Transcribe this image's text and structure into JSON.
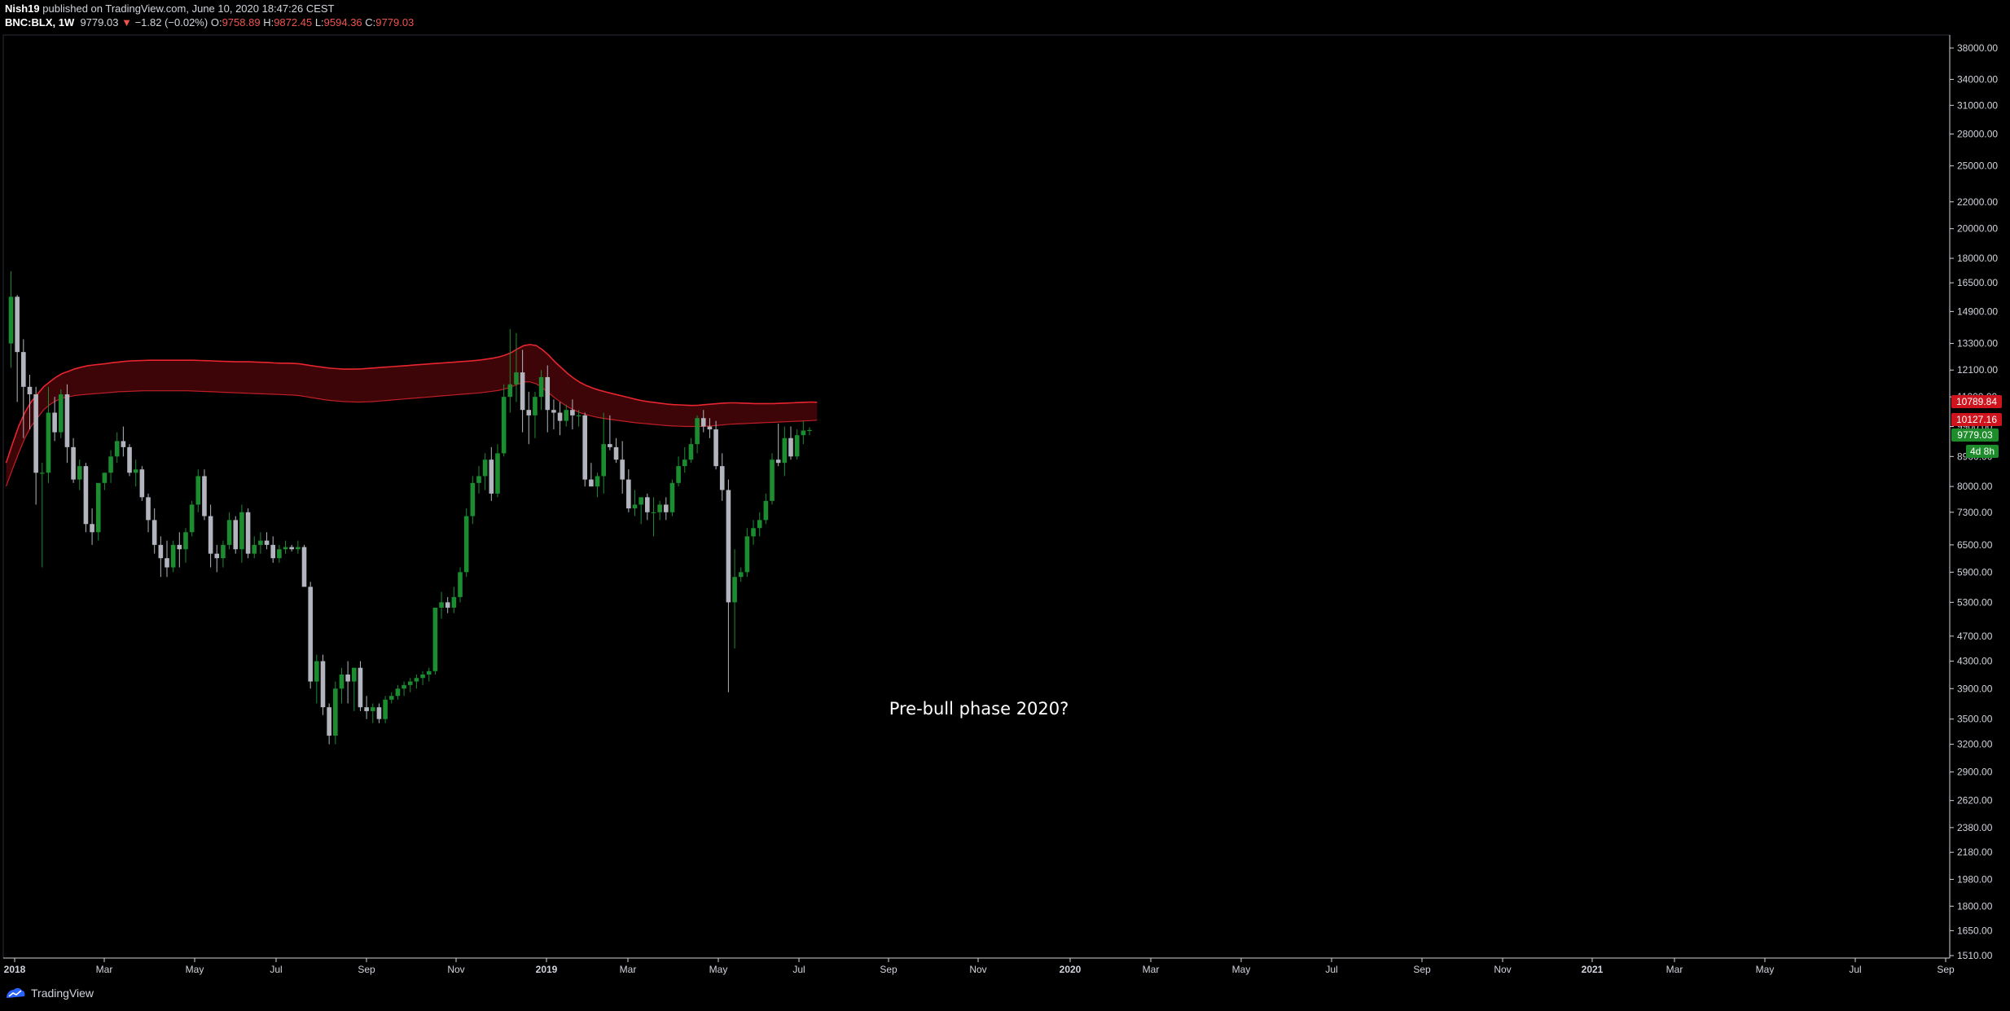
{
  "header": {
    "publisher": "Nish19",
    "published_text": "published on TradingView.com, June 10, 2020 18:47:26 CEST",
    "symbol": "BNC:BLX, 1W",
    "last": "9779.03",
    "change": "−1.82 (−0.02%)",
    "o_label": "O:",
    "o_value": "9758.89",
    "h_label": "H:",
    "h_value": "9872.45",
    "l_label": "L:",
    "l_value": "9594.36",
    "c_label": "C:",
    "c_value": "9779.03"
  },
  "footer": {
    "brand": "TradingView"
  },
  "annotation": "Pre-bull phase 2020?",
  "price_tags": {
    "band_upper": "10789.84",
    "band_lower": "10127.16",
    "last_price": "9779.03",
    "countdown": "4d 8h"
  },
  "colors": {
    "background": "#000000",
    "bull": "#1b8c30",
    "bear": "#b2b5be",
    "band_line": "#e8252f",
    "band_fill": "#3d0508",
    "tag_red": "#d0141e",
    "tag_green": "#1e8c2b"
  },
  "chart_data": {
    "type": "candlestick",
    "scale": "log",
    "timeframe": "1W",
    "y_ticks": [
      "38000.00",
      "34000.00",
      "31000.00",
      "28000.00",
      "25000.00",
      "22000.00",
      "20000.00",
      "18000.00",
      "16500.00",
      "14900.00",
      "13300.00",
      "12100.00",
      "11000.00",
      "9900.00",
      "8900.00",
      "8000.00",
      "7300.00",
      "6500.00",
      "5900.00",
      "5300.00",
      "4700.00",
      "4300.00",
      "3900.00",
      "3500.00",
      "3200.00",
      "2900.00",
      "2620.00",
      "2380.00",
      "2180.00",
      "1980.00",
      "1800.00",
      "1650.00",
      "1510.00"
    ],
    "x_ticks": [
      "2018",
      "Mar",
      "May",
      "Jul",
      "Sep",
      "Nov",
      "2019",
      "Mar",
      "May",
      "Jul",
      "Sep",
      "Nov",
      "2020",
      "Mar",
      "May",
      "Jul",
      "Sep",
      "Nov",
      "2021",
      "Mar",
      "May",
      "Jul",
      "Sep"
    ],
    "candles": [
      {
        "o": 13300,
        "h": 17200,
        "l": 12200,
        "c": 15700
      },
      {
        "o": 15700,
        "h": 15800,
        "l": 10800,
        "c": 12900
      },
      {
        "o": 12900,
        "h": 13500,
        "l": 9500,
        "c": 11400
      },
      {
        "o": 11400,
        "h": 11900,
        "l": 9800,
        "c": 11100
      },
      {
        "o": 11100,
        "h": 11400,
        "l": 7500,
        "c": 8400
      },
      {
        "o": 8400,
        "h": 8700,
        "l": 6000,
        "c": 8400
      },
      {
        "o": 8400,
        "h": 11400,
        "l": 8100,
        "c": 10400
      },
      {
        "o": 10400,
        "h": 11000,
        "l": 9400,
        "c": 9700
      },
      {
        "o": 9700,
        "h": 11300,
        "l": 9500,
        "c": 11100
      },
      {
        "o": 11100,
        "h": 11500,
        "l": 8700,
        "c": 9200
      },
      {
        "o": 9200,
        "h": 9500,
        "l": 8100,
        "c": 8200
      },
      {
        "o": 8200,
        "h": 8800,
        "l": 7900,
        "c": 8600
      },
      {
        "o": 8600,
        "h": 8700,
        "l": 6800,
        "c": 7000
      },
      {
        "o": 7000,
        "h": 7400,
        "l": 6500,
        "c": 6800
      },
      {
        "o": 6800,
        "h": 8100,
        "l": 6600,
        "c": 8100
      },
      {
        "o": 8100,
        "h": 8400,
        "l": 7900,
        "c": 8400
      },
      {
        "o": 8400,
        "h": 9100,
        "l": 8100,
        "c": 8900
      },
      {
        "o": 8900,
        "h": 9700,
        "l": 8700,
        "c": 9400
      },
      {
        "o": 9400,
        "h": 9900,
        "l": 8900,
        "c": 9200
      },
      {
        "o": 9200,
        "h": 9300,
        "l": 8300,
        "c": 8400
      },
      {
        "o": 8400,
        "h": 8800,
        "l": 8000,
        "c": 8500
      },
      {
        "o": 8500,
        "h": 8600,
        "l": 7600,
        "c": 7700
      },
      {
        "o": 7700,
        "h": 7800,
        "l": 6800,
        "c": 7100
      },
      {
        "o": 7100,
        "h": 7400,
        "l": 6300,
        "c": 6500
      },
      {
        "o": 6500,
        "h": 6700,
        "l": 5800,
        "c": 6200
      },
      {
        "o": 6200,
        "h": 6600,
        "l": 5800,
        "c": 6000
      },
      {
        "o": 6000,
        "h": 6600,
        "l": 5900,
        "c": 6500
      },
      {
        "o": 6500,
        "h": 6800,
        "l": 6000,
        "c": 6400
      },
      {
        "o": 6400,
        "h": 6900,
        "l": 6100,
        "c": 6800
      },
      {
        "o": 6800,
        "h": 7600,
        "l": 6700,
        "c": 7500
      },
      {
        "o": 7500,
        "h": 8500,
        "l": 7300,
        "c": 8300
      },
      {
        "o": 8300,
        "h": 8500,
        "l": 7100,
        "c": 7200
      },
      {
        "o": 7200,
        "h": 7500,
        "l": 6000,
        "c": 6300
      },
      {
        "o": 6300,
        "h": 6500,
        "l": 5900,
        "c": 6200
      },
      {
        "o": 6200,
        "h": 6600,
        "l": 6000,
        "c": 6500
      },
      {
        "o": 6500,
        "h": 7300,
        "l": 6400,
        "c": 7100
      },
      {
        "o": 7100,
        "h": 7200,
        "l": 6300,
        "c": 6400
      },
      {
        "o": 6400,
        "h": 7500,
        "l": 6100,
        "c": 7300
      },
      {
        "o": 7300,
        "h": 7400,
        "l": 6200,
        "c": 6300
      },
      {
        "o": 6300,
        "h": 6700,
        "l": 6200,
        "c": 6500
      },
      {
        "o": 6500,
        "h": 6800,
        "l": 6300,
        "c": 6600
      },
      {
        "o": 6600,
        "h": 6800,
        "l": 6400,
        "c": 6500
      },
      {
        "o": 6500,
        "h": 6700,
        "l": 6100,
        "c": 6200
      },
      {
        "o": 6200,
        "h": 6500,
        "l": 6100,
        "c": 6400
      },
      {
        "o": 6400,
        "h": 6600,
        "l": 6300,
        "c": 6450
      },
      {
        "o": 6450,
        "h": 6500,
        "l": 6350,
        "c": 6400
      },
      {
        "o": 6400,
        "h": 6600,
        "l": 6300,
        "c": 6450
      },
      {
        "o": 6450,
        "h": 6500,
        "l": 5700,
        "c": 5600
      },
      {
        "o": 5600,
        "h": 5700,
        "l": 3900,
        "c": 4000
      },
      {
        "o": 4000,
        "h": 4400,
        "l": 3700,
        "c": 4300
      },
      {
        "o": 4300,
        "h": 4400,
        "l": 3550,
        "c": 3650
      },
      {
        "o": 3650,
        "h": 3700,
        "l": 3200,
        "c": 3300
      },
      {
        "o": 3300,
        "h": 4000,
        "l": 3200,
        "c": 3900
      },
      {
        "o": 3900,
        "h": 4200,
        "l": 3700,
        "c": 4100
      },
      {
        "o": 4100,
        "h": 4300,
        "l": 3700,
        "c": 4000
      },
      {
        "o": 4000,
        "h": 4200,
        "l": 3600,
        "c": 4200
      },
      {
        "o": 4200,
        "h": 4300,
        "l": 3600,
        "c": 3650
      },
      {
        "o": 3650,
        "h": 3800,
        "l": 3500,
        "c": 3600
      },
      {
        "o": 3600,
        "h": 3700,
        "l": 3450,
        "c": 3650
      },
      {
        "o": 3650,
        "h": 3700,
        "l": 3450,
        "c": 3500
      },
      {
        "o": 3500,
        "h": 3800,
        "l": 3450,
        "c": 3750
      },
      {
        "o": 3750,
        "h": 3850,
        "l": 3700,
        "c": 3800
      },
      {
        "o": 3800,
        "h": 3950,
        "l": 3750,
        "c": 3900
      },
      {
        "o": 3900,
        "h": 4000,
        "l": 3800,
        "c": 3950
      },
      {
        "o": 3950,
        "h": 4050,
        "l": 3850,
        "c": 4000
      },
      {
        "o": 4000,
        "h": 4100,
        "l": 3900,
        "c": 4050
      },
      {
        "o": 4050,
        "h": 4150,
        "l": 3950,
        "c": 4100
      },
      {
        "o": 4100,
        "h": 4200,
        "l": 4000,
        "c": 4150
      },
      {
        "o": 4150,
        "h": 5200,
        "l": 4100,
        "c": 5200
      },
      {
        "o": 5200,
        "h": 5500,
        "l": 5000,
        "c": 5300
      },
      {
        "o": 5300,
        "h": 5400,
        "l": 5100,
        "c": 5200
      },
      {
        "o": 5200,
        "h": 5600,
        "l": 5100,
        "c": 5400
      },
      {
        "o": 5400,
        "h": 6000,
        "l": 5300,
        "c": 5900
      },
      {
        "o": 5900,
        "h": 7400,
        "l": 5800,
        "c": 7200
      },
      {
        "o": 7200,
        "h": 8300,
        "l": 7000,
        "c": 8100
      },
      {
        "o": 8100,
        "h": 8600,
        "l": 7800,
        "c": 8300
      },
      {
        "o": 8300,
        "h": 9000,
        "l": 7900,
        "c": 8800
      },
      {
        "o": 8800,
        "h": 9200,
        "l": 7600,
        "c": 7800
      },
      {
        "o": 7800,
        "h": 9300,
        "l": 7700,
        "c": 9000
      },
      {
        "o": 9000,
        "h": 11500,
        "l": 8900,
        "c": 11000
      },
      {
        "o": 11000,
        "h": 14000,
        "l": 10400,
        "c": 11500
      },
      {
        "o": 11500,
        "h": 13800,
        "l": 10800,
        "c": 12000
      },
      {
        "o": 12000,
        "h": 13000,
        "l": 9700,
        "c": 10500
      },
      {
        "o": 10500,
        "h": 11200,
        "l": 9300,
        "c": 10300
      },
      {
        "o": 10300,
        "h": 11200,
        "l": 9500,
        "c": 11000
      },
      {
        "o": 11000,
        "h": 12100,
        "l": 10500,
        "c": 11800
      },
      {
        "o": 11800,
        "h": 12300,
        "l": 9700,
        "c": 10500
      },
      {
        "o": 10500,
        "h": 10900,
        "l": 9800,
        "c": 10400
      },
      {
        "o": 10400,
        "h": 10800,
        "l": 9600,
        "c": 10100
      },
      {
        "o": 10100,
        "h": 10700,
        "l": 9900,
        "c": 10500
      },
      {
        "o": 10500,
        "h": 10900,
        "l": 9800,
        "c": 10300
      },
      {
        "o": 10300,
        "h": 10500,
        "l": 9900,
        "c": 10300
      },
      {
        "o": 10300,
        "h": 10400,
        "l": 8000,
        "c": 8200
      },
      {
        "o": 8200,
        "h": 8700,
        "l": 8000,
        "c": 8000
      },
      {
        "o": 8000,
        "h": 8400,
        "l": 7700,
        "c": 8300
      },
      {
        "o": 8300,
        "h": 10400,
        "l": 7800,
        "c": 9300
      },
      {
        "o": 9300,
        "h": 10300,
        "l": 9100,
        "c": 9200
      },
      {
        "o": 9200,
        "h": 9500,
        "l": 8700,
        "c": 8800
      },
      {
        "o": 8800,
        "h": 9400,
        "l": 7800,
        "c": 8200
      },
      {
        "o": 8200,
        "h": 8500,
        "l": 7300,
        "c": 7400
      },
      {
        "o": 7400,
        "h": 7900,
        "l": 7200,
        "c": 7500
      },
      {
        "o": 7500,
        "h": 7700,
        "l": 7000,
        "c": 7700
      },
      {
        "o": 7700,
        "h": 7800,
        "l": 7100,
        "c": 7300
      },
      {
        "o": 7300,
        "h": 7700,
        "l": 6700,
        "c": 7300
      },
      {
        "o": 7300,
        "h": 7600,
        "l": 7100,
        "c": 7500
      },
      {
        "o": 7500,
        "h": 7700,
        "l": 7100,
        "c": 7300
      },
      {
        "o": 7300,
        "h": 8200,
        "l": 7200,
        "c": 8100
      },
      {
        "o": 8100,
        "h": 8900,
        "l": 8000,
        "c": 8600
      },
      {
        "o": 8600,
        "h": 9200,
        "l": 8400,
        "c": 8800
      },
      {
        "o": 8800,
        "h": 9500,
        "l": 8700,
        "c": 9300
      },
      {
        "o": 9300,
        "h": 10300,
        "l": 9000,
        "c": 10200
      },
      {
        "o": 10200,
        "h": 10500,
        "l": 9700,
        "c": 9900
      },
      {
        "o": 9900,
        "h": 10200,
        "l": 9500,
        "c": 9800
      },
      {
        "o": 9800,
        "h": 10100,
        "l": 8500,
        "c": 8600
      },
      {
        "o": 8600,
        "h": 9000,
        "l": 7600,
        "c": 7900
      },
      {
        "o": 7900,
        "h": 8200,
        "l": 3850,
        "c": 5300
      },
      {
        "o": 5300,
        "h": 6400,
        "l": 4500,
        "c": 5800
      },
      {
        "o": 5800,
        "h": 6000,
        "l": 5700,
        "c": 5900
      },
      {
        "o": 5900,
        "h": 6900,
        "l": 5800,
        "c": 6700
      },
      {
        "o": 6700,
        "h": 7100,
        "l": 6500,
        "c": 6900
      },
      {
        "o": 6900,
        "h": 7300,
        "l": 6700,
        "c": 7100
      },
      {
        "o": 7100,
        "h": 7800,
        "l": 7000,
        "c": 7600
      },
      {
        "o": 7600,
        "h": 9000,
        "l": 7500,
        "c": 8800
      },
      {
        "o": 8800,
        "h": 10000,
        "l": 8600,
        "c": 8700
      },
      {
        "o": 8700,
        "h": 9900,
        "l": 8300,
        "c": 9500
      },
      {
        "o": 9500,
        "h": 9900,
        "l": 8800,
        "c": 8900
      },
      {
        "o": 8900,
        "h": 9800,
        "l": 8800,
        "c": 9600
      },
      {
        "o": 9600,
        "h": 10100,
        "l": 9300,
        "c": 9759
      },
      {
        "o": 9759,
        "h": 9872,
        "l": 9594,
        "c": 9779
      }
    ],
    "band_upper": [
      8700,
      9300,
      9900,
      10400,
      10800,
      11100,
      11400,
      11600,
      11800,
      11950,
      12050,
      12150,
      12220,
      12280,
      12320,
      12350,
      12380,
      12420,
      12450,
      12480,
      12500,
      12510,
      12520,
      12530,
      12530,
      12530,
      12530,
      12530,
      12530,
      12530,
      12530,
      12520,
      12510,
      12500,
      12490,
      12480,
      12470,
      12460,
      12460,
      12460,
      12450,
      12440,
      12430,
      12410,
      12400,
      12400,
      12390,
      12370,
      12330,
      12290,
      12250,
      12210,
      12180,
      12160,
      12140,
      12140,
      12140,
      12150,
      12170,
      12190,
      12210,
      12230,
      12250,
      12270,
      12290,
      12310,
      12330,
      12350,
      12370,
      12390,
      12410,
      12430,
      12450,
      12470,
      12490,
      12510,
      12540,
      12580,
      12620,
      12680,
      12760,
      12880,
      13050,
      13200,
      13250,
      13200,
      13000,
      12750,
      12450,
      12200,
      11950,
      11750,
      11580,
      11450,
      11350,
      11270,
      11200,
      11140,
      11080,
      11020,
      10960,
      10900,
      10850,
      10810,
      10780,
      10750,
      10720,
      10700,
      10690,
      10680,
      10670,
      10680,
      10700,
      10720,
      10740,
      10760,
      10770,
      10770,
      10760,
      10750,
      10740,
      10740,
      10740,
      10740,
      10750,
      10760,
      10770,
      10780,
      10790,
      10800,
      10790
    ],
    "band_lower": [
      8000,
      8500,
      9000,
      9500,
      9900,
      10200,
      10500,
      10700,
      10850,
      10950,
      11000,
      11050,
      11080,
      11100,
      11120,
      11140,
      11160,
      11180,
      11200,
      11210,
      11220,
      11230,
      11240,
      11240,
      11240,
      11240,
      11240,
      11240,
      11240,
      11240,
      11230,
      11220,
      11210,
      11200,
      11190,
      11180,
      11170,
      11160,
      11150,
      11140,
      11130,
      11120,
      11110,
      11100,
      11090,
      11080,
      11070,
      11050,
      11010,
      10970,
      10930,
      10890,
      10860,
      10840,
      10820,
      10810,
      10800,
      10800,
      10810,
      10820,
      10840,
      10860,
      10880,
      10900,
      10920,
      10940,
      10960,
      10980,
      11000,
      11020,
      11040,
      11060,
      11080,
      11100,
      11120,
      11140,
      11160,
      11190,
      11220,
      11260,
      11320,
      11400,
      11500,
      11600,
      11600,
      11520,
      11350,
      11150,
      10950,
      10780,
      10620,
      10500,
      10400,
      10330,
      10270,
      10220,
      10180,
      10150,
      10120,
      10090,
      10060,
      10030,
      10010,
      9990,
      9970,
      9950,
      9930,
      9920,
      9910,
      9900,
      9900,
      9900,
      9910,
      9920,
      9940,
      9960,
      9980,
      9990,
      10000,
      10010,
      10020,
      10030,
      10040,
      10050,
      10060,
      10070,
      10080,
      10090,
      10100,
      10110,
      10127
    ]
  }
}
